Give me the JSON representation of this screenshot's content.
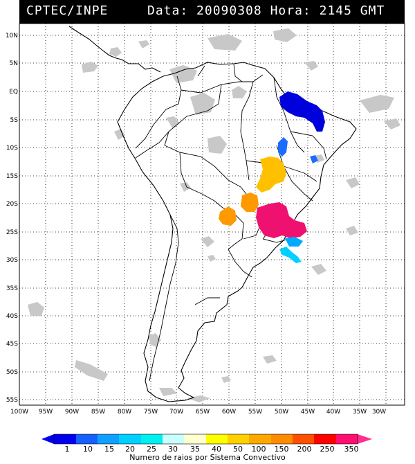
{
  "header": {
    "source": "CPTEC/INPE",
    "date_label": "Data:",
    "date_value": "20090308",
    "time_label": "Hora:",
    "time_value": "2145 GMT"
  },
  "map": {
    "lat_labels": [
      "10N",
      "5N",
      "EQ",
      "5S",
      "10S",
      "15S",
      "20S",
      "25S",
      "30S",
      "35S",
      "40S",
      "45S",
      "50S",
      "55S"
    ],
    "lon_labels": [
      "100W",
      "95W",
      "90W",
      "85W",
      "80W",
      "75W",
      "70W",
      "65W",
      "60W",
      "55W",
      "50W",
      "45W",
      "40W",
      "35W",
      "30W"
    ],
    "land_color": "#ffffff",
    "cloud_color": "#c8c8c8"
  },
  "colorbar": {
    "ticks": [
      "1",
      "10",
      "15",
      "20",
      "25",
      "30",
      "35",
      "40",
      "50",
      "100",
      "150",
      "200",
      "250",
      "350"
    ],
    "colors": [
      "#0000ee",
      "#1560ff",
      "#10a0ff",
      "#00d0ff",
      "#00f0f0",
      "#c8ffff",
      "#ffffd0",
      "#ffff00",
      "#ffd000",
      "#ffa800",
      "#ff8c00",
      "#ff5000",
      "#ff0000",
      "#ff1070",
      "#ff3090"
    ],
    "title": "Numero de raios por Sistema Convectivo"
  },
  "systems": [
    {
      "color": "#0000dd"
    },
    {
      "color": "#1a6cff"
    },
    {
      "color": "#ffc000"
    },
    {
      "color": "#ff9900"
    },
    {
      "color": "#ee1170"
    },
    {
      "color": "#00aaff"
    }
  ]
}
